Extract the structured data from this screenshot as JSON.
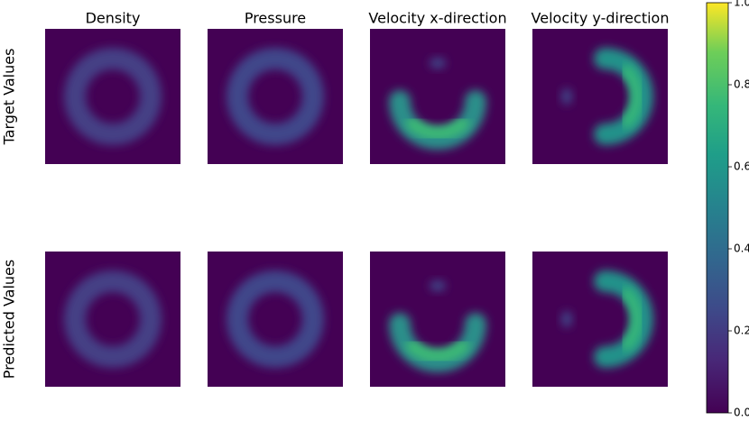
{
  "chart_data": {
    "type": "image-grid",
    "columns": [
      "Density",
      "Pressure",
      "Velocity x-direction",
      "Velocity y-direction"
    ],
    "rows": [
      "Target Values",
      "Predicted Values"
    ],
    "colormap": "viridis",
    "colorbar": {
      "lim": [
        0,
        1
      ],
      "ticks": [
        {
          "value": 0,
          "label": "0.0"
        },
        {
          "value": 0.2,
          "label": "0.2"
        },
        {
          "value": 0.4,
          "label": "0.4"
        },
        {
          "value": 0.6,
          "label": "0.6"
        },
        {
          "value": 0.8,
          "label": "0.8"
        },
        {
          "value": 1,
          "label": "1.0"
        }
      ]
    }
  }
}
